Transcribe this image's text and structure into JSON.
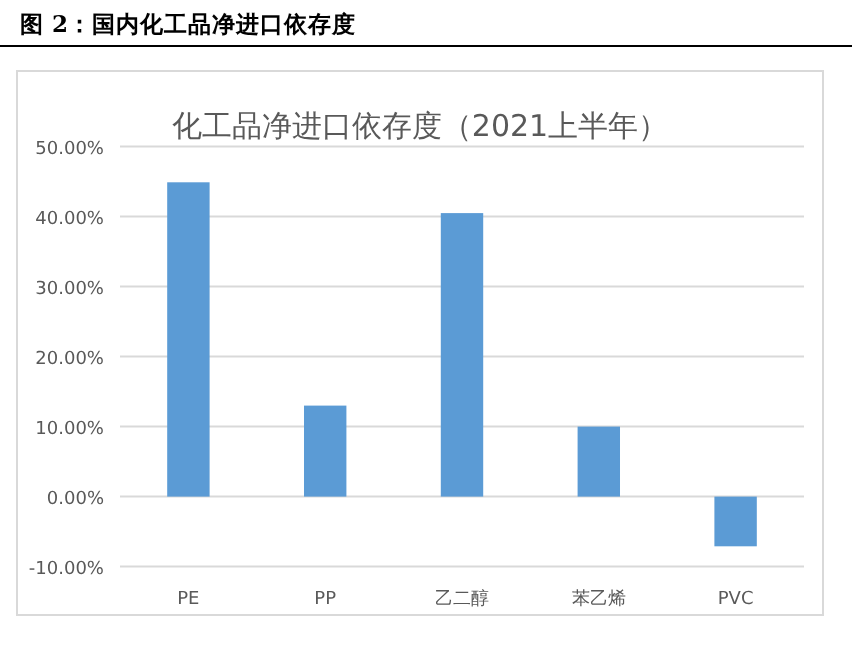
{
  "chart_data": {
    "type": "bar",
    "title": "图 2：国内化工品净进口依存度",
    "subtitle": "化工品净进口依存度（2021上半年）",
    "categories": [
      "PE",
      "PP",
      "乙二醇",
      "苯乙烯",
      "PVC"
    ],
    "values": [
      44.9,
      13.0,
      40.5,
      10.0,
      -7.1
    ],
    "color": "#5b9bd5",
    "ylim": [
      -10,
      50
    ],
    "yticks": [
      {
        "value": -10,
        "label": "-10.00%"
      },
      {
        "value": 0,
        "label": "0.00%"
      },
      {
        "value": 10,
        "label": "10.00%"
      },
      {
        "value": 20,
        "label": "20.00%"
      },
      {
        "value": 30,
        "label": "30.00%"
      },
      {
        "value": 40,
        "label": "40.00%"
      },
      {
        "value": 50,
        "label": "50.00%"
      }
    ],
    "grid": "y"
  }
}
